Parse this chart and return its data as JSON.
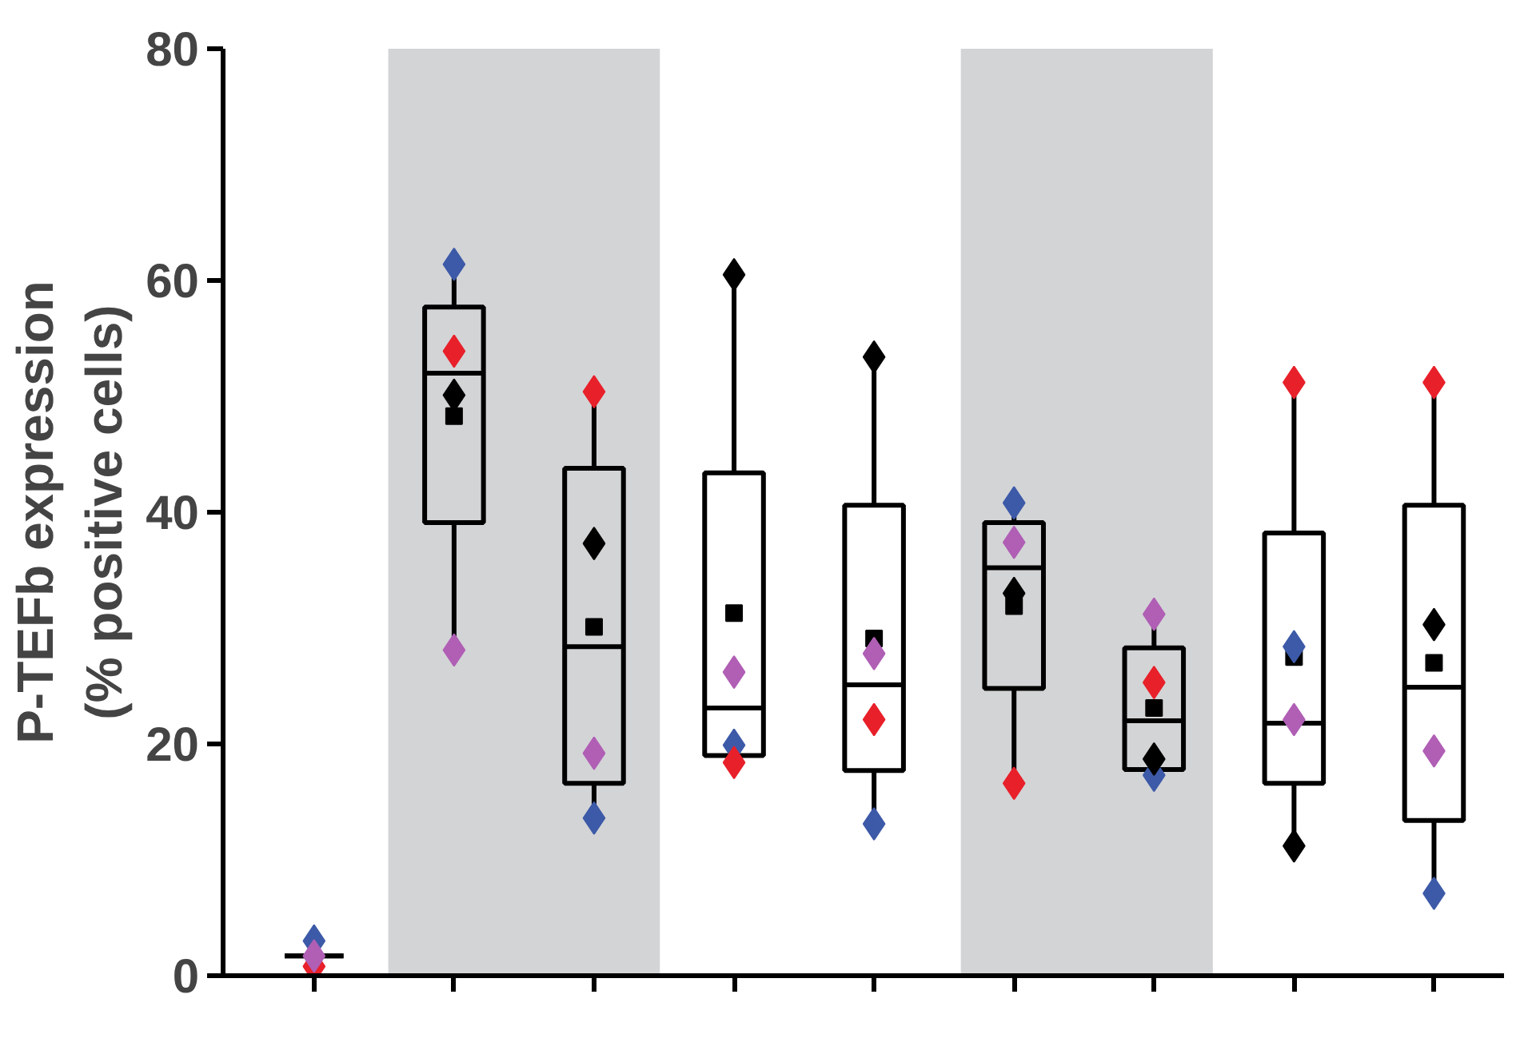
{
  "chart_data": {
    "type": "box",
    "ylabel": "P-TEFb expression\n(% positive cells)",
    "categories": [
      null,
      null,
      null,
      null,
      null,
      null,
      null,
      null,
      null
    ],
    "ylim": [
      0,
      80
    ],
    "yticks": [
      0,
      20,
      40,
      60,
      80
    ],
    "grid": false,
    "boxes": [
      {
        "low": 1.7,
        "q1": 1.7,
        "median": 1.7,
        "q3": 1.7,
        "high": 1.7
      },
      {
        "low": 28.1,
        "q1": 39.1,
        "median": 52.0,
        "q3": 57.7,
        "high": 61.4,
        "mean": 48.3
      },
      {
        "low": 13.6,
        "q1": 16.6,
        "median": 28.4,
        "q3": 43.8,
        "high": 50.4,
        "mean": 30.1
      },
      {
        "low": 18.4,
        "q1": 19.0,
        "median": 23.1,
        "q3": 43.4,
        "high": 60.5,
        "mean": 31.3
      },
      {
        "low": 13.1,
        "q1": 17.7,
        "median": 25.1,
        "q3": 40.6,
        "high": 53.4,
        "mean": 29.1
      },
      {
        "low": 16.6,
        "q1": 24.8,
        "median": 35.2,
        "q3": 39.1,
        "high": 40.8,
        "mean": 31.9
      },
      {
        "low": 17.3,
        "q1": 17.8,
        "median": 22.0,
        "q3": 28.3,
        "high": 31.2,
        "mean": 23.1
      },
      {
        "low": 11.2,
        "q1": 16.6,
        "median": 21.8,
        "q3": 38.2,
        "high": 51.2,
        "mean": 27.5
      },
      {
        "low": 7.1,
        "q1": 13.4,
        "median": 24.9,
        "q3": 40.6,
        "high": 51.2,
        "mean": 27.0
      }
    ],
    "series": [
      {
        "type": "scatter",
        "marker": "diamond",
        "color": "#3d5aa8",
        "values": [
          3.0,
          61.4,
          13.6,
          19.9,
          13.1,
          40.8,
          17.3,
          28.4,
          7.1
        ]
      },
      {
        "type": "scatter",
        "marker": "diamond",
        "color": "#e8202a",
        "values": [
          0.8,
          53.9,
          50.4,
          18.4,
          22.1,
          16.6,
          25.3,
          51.2,
          51.2
        ]
      },
      {
        "type": "scatter",
        "marker": "diamond",
        "color": "#000000",
        "values": [
          null,
          50.1,
          37.3,
          60.5,
          53.4,
          33.0,
          18.7,
          11.2,
          30.3
        ]
      },
      {
        "type": "scatter",
        "marker": "diamond",
        "color": "#b05fb5",
        "values": [
          1.7,
          28.1,
          19.2,
          26.2,
          27.8,
          37.4,
          31.2,
          22.1,
          19.4
        ]
      }
    ]
  }
}
